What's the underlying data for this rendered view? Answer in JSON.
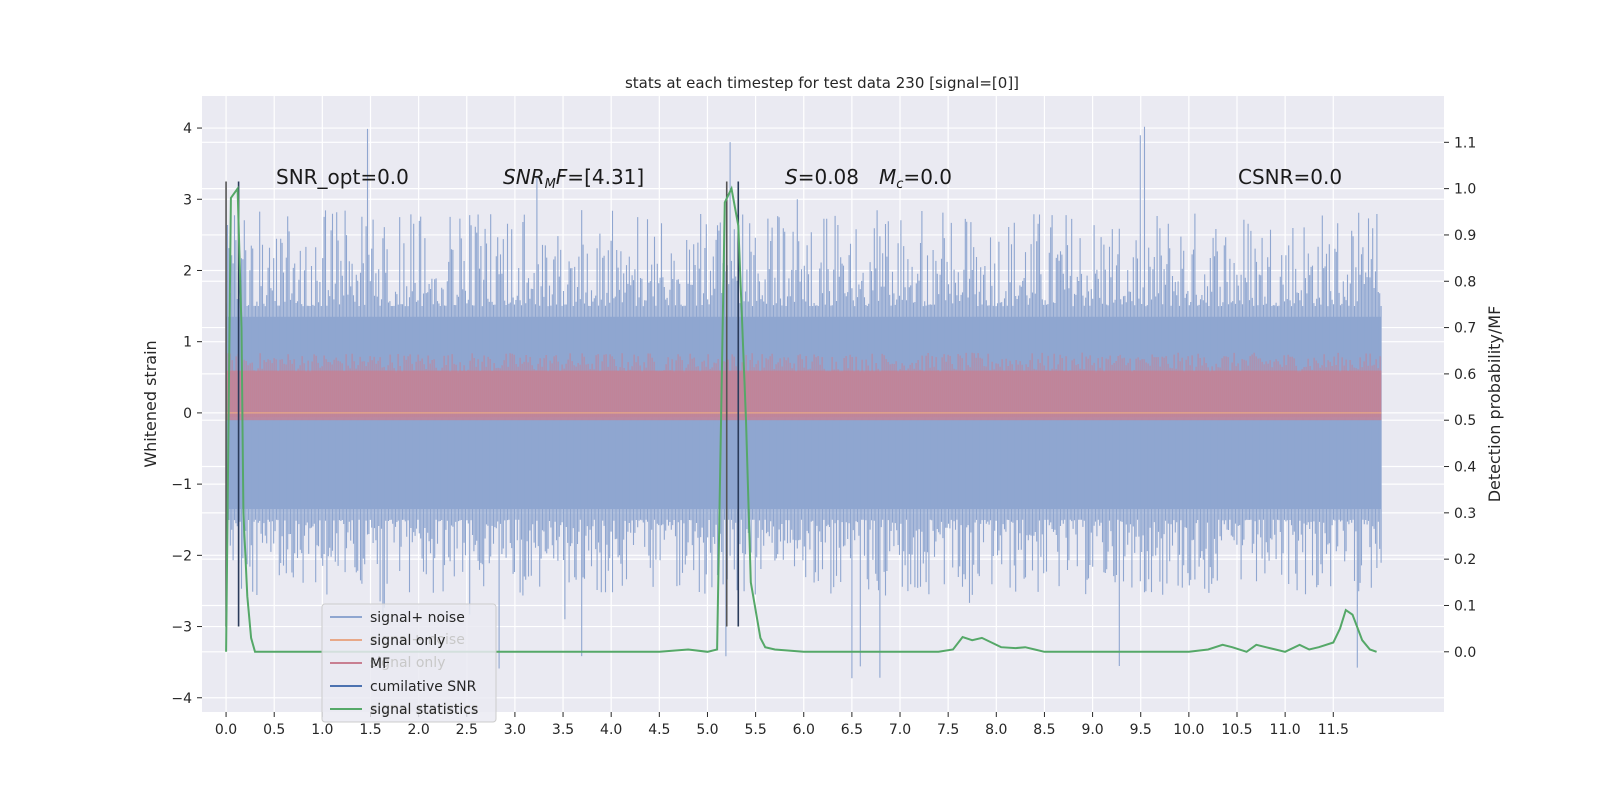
{
  "chart_data": {
    "type": "line",
    "title": "stats at each timestep for test data 230 [signal=[0]]",
    "ylabel_left": "Whitened strain",
    "ylabel_right": "Detection probability/MF",
    "xlim": [
      -0.25,
      12.65
    ],
    "ylim_left": [
      -4.2,
      4.45
    ],
    "ylim_right": [
      -0.13,
      1.2
    ],
    "x_ticks": [
      "0.0",
      "0.5",
      "1.0",
      "1.5",
      "2.0",
      "2.5",
      "3.0",
      "3.5",
      "4.0",
      "4.5",
      "5.0",
      "5.5",
      "6.0",
      "6.5",
      "7.0",
      "7.5",
      "8.0",
      "8.5",
      "9.0",
      "9.5",
      "10.0",
      "10.5",
      "11.0",
      "11.5"
    ],
    "y_ticks_left": [
      "4",
      "3",
      "2",
      "1",
      "0",
      "−1",
      "−2",
      "−3",
      "−4"
    ],
    "y_ticks_right": [
      "1.1",
      "1.0",
      "0.9",
      "0.8",
      "0.7",
      "0.6",
      "0.5",
      "0.4",
      "0.3",
      "0.2",
      "0.1",
      "0.0"
    ],
    "grid": true,
    "legend_position": "lower-left",
    "annotations": {
      "snr_opt": "SNR_opt=0.0",
      "snr_mf": "[4.31]",
      "s_value": "0.08",
      "mc_value": "0.0",
      "csnr": "CSNR=0.0"
    },
    "series": [
      {
        "name": "signal+ noise",
        "color": "#8fa6d0",
        "x_range": [
          0.0,
          12.0
        ],
        "core_band": [
          -1.35,
          1.35
        ],
        "spike_max": 4.1,
        "spike_min": -3.85
      },
      {
        "name": "signal only",
        "color": "#e8a888",
        "values_constant": 0.0
      },
      {
        "name": "MF",
        "color": "#c87f91",
        "band_right_units": [
          0.5,
          0.62
        ]
      },
      {
        "name": "cumilative SNR",
        "color": "#4c72b0",
        "vertical_lines_x": [
          0.0,
          0.13,
          5.2,
          5.32
        ],
        "y_span": [
          -3.0,
          3.25
        ]
      },
      {
        "name": "signal statistics",
        "color": "#55a868",
        "x": [
          0.0,
          0.05,
          0.12,
          0.16,
          0.18,
          0.22,
          0.26,
          0.3,
          0.5,
          1.0,
          2.0,
          3.0,
          4.0,
          4.5,
          4.8,
          5.0,
          5.1,
          5.18,
          5.25,
          5.32,
          5.4,
          5.45,
          5.55,
          5.6,
          5.7,
          6.0,
          6.5,
          7.0,
          7.4,
          7.55,
          7.65,
          7.75,
          7.85,
          7.95,
          8.05,
          8.2,
          8.3,
          8.4,
          8.5,
          8.6,
          9.0,
          9.5,
          10.0,
          10.2,
          10.35,
          10.45,
          10.6,
          10.7,
          10.8,
          10.9,
          11.0,
          11.15,
          11.25,
          11.35,
          11.5,
          11.57,
          11.63,
          11.7,
          11.8,
          11.88,
          11.95
        ],
        "values": [
          0.0,
          0.98,
          1.0,
          0.7,
          0.3,
          0.12,
          0.03,
          0.0,
          0.0,
          0.0,
          0.0,
          0.0,
          0.0,
          0.0,
          0.005,
          0.0,
          0.005,
          0.97,
          1.0,
          0.92,
          0.5,
          0.15,
          0.03,
          0.01,
          0.005,
          0.0,
          0.0,
          0.0,
          0.0,
          0.005,
          0.032,
          0.025,
          0.03,
          0.02,
          0.01,
          0.008,
          0.01,
          0.005,
          0.0,
          0.0,
          0.0,
          0.0,
          0.0,
          0.005,
          0.015,
          0.01,
          0.0,
          0.015,
          0.01,
          0.005,
          0.0,
          0.015,
          0.005,
          0.01,
          0.02,
          0.05,
          0.09,
          0.08,
          0.025,
          0.005,
          0.0
        ]
      }
    ]
  }
}
